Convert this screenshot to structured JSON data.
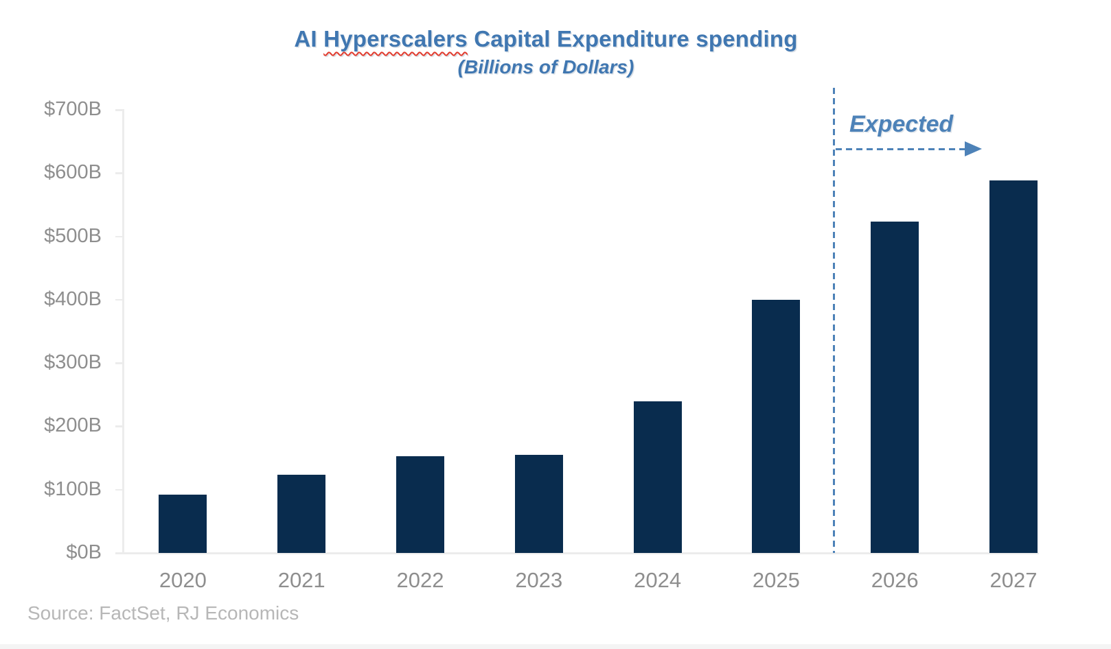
{
  "title": {
    "prefix": "AI ",
    "misspelled_word": "Hyperscalers",
    "suffix": " Capital Expenditure spending",
    "subtitle": "(Billions of Dollars)"
  },
  "annotation": {
    "label": "Expected"
  },
  "source": {
    "text": "Source: FactSet, RJ Economics"
  },
  "colors": {
    "bar": "#092c4e",
    "accent": "#4d82b8",
    "title_blue": "#4077b1",
    "axis_line": "#ececec",
    "tick_label": "#8e8e8e",
    "source_label": "#b7b7b7",
    "squiggle": "#e23c2e",
    "strip": "#f4f4f4"
  },
  "chart_data": {
    "type": "bar",
    "title": "AI Hyperscalers Capital Expenditure spending",
    "subtitle": "(Billions of Dollars)",
    "categories": [
      "2020",
      "2021",
      "2022",
      "2023",
      "2024",
      "2025",
      "2026",
      "2027"
    ],
    "values": [
      92,
      124,
      153,
      155,
      240,
      400,
      523,
      588
    ],
    "unit": "Billions of Dollars",
    "y_ticks": [
      "$0B",
      "$100B",
      "$200B",
      "$300B",
      "$400B",
      "$500B",
      "$600B",
      "$700B"
    ],
    "ylim": [
      0,
      700
    ],
    "xlabel": "",
    "ylabel": "",
    "grid": false,
    "legend": false,
    "annotation": "Expected",
    "expected_from_category": "2026",
    "source": "Source: FactSet, RJ Economics",
    "bar_color": "#092c4e"
  }
}
